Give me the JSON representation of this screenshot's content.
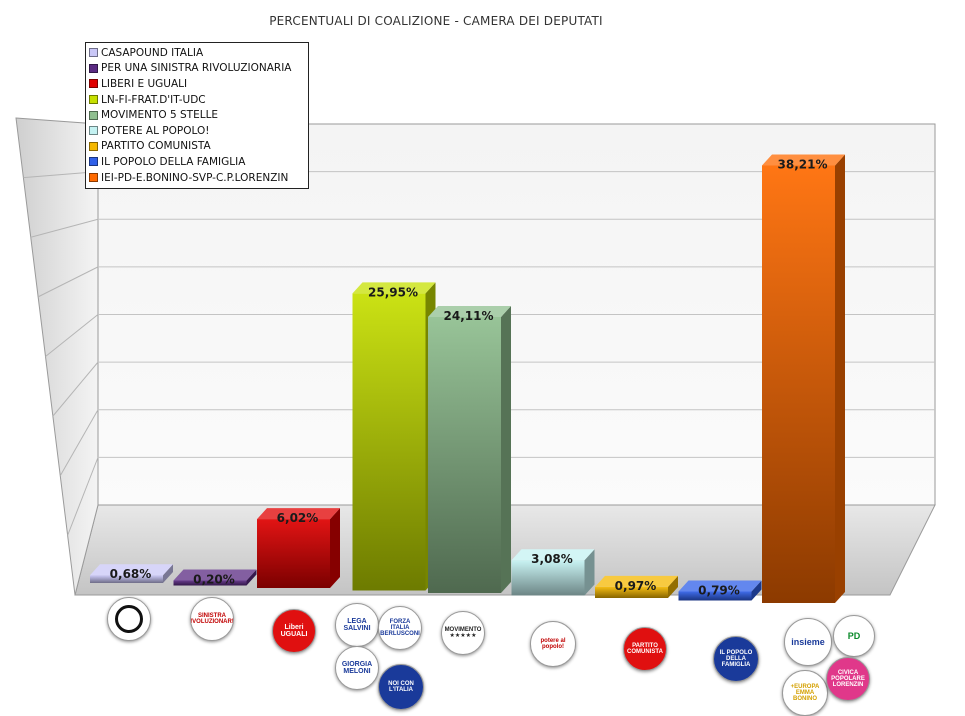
{
  "chart_data": {
    "type": "bar",
    "title": "PERCENTUALI DI COALIZIONE - CAMERA DEI DEPUTATI",
    "categories": [
      "CASAPOUND ITALIA",
      "PER UNA SINISTRA RIVOLUZIONARIA",
      "LIBERI E UGUALI",
      "LN-FI-FRAT.D'IT-UDC",
      "MOVIMENTO 5 STELLE",
      "POTERE AL POPOLO!",
      "PARTITO COMUNISTA",
      "IL POPOLO DELLA FAMIGLIA",
      "IEI-PD-E.BONINO-SVP-C.P.LORENZIN"
    ],
    "values": [
      0.68,
      0.2,
      6.02,
      25.95,
      24.11,
      3.08,
      0.97,
      0.79,
      38.21
    ],
    "data_labels": [
      "0,68%",
      "0,20%",
      "6,02%",
      "25,95%",
      "24,11%",
      "3,08%",
      "0,97%",
      "0,79%",
      "38,21%"
    ],
    "colors": [
      "#c9c7f7",
      "#5a2a82",
      "#e00000",
      "#c6e000",
      "#8fbf8f",
      "#c4f2f2",
      "#f5b800",
      "#2f5fe8",
      "#ff6a00"
    ],
    "ylim": [
      0,
      40
    ],
    "grid": true,
    "legend_position": "top-left"
  },
  "logos": [
    {
      "name": "casapound-logo",
      "text": "",
      "bg": "#ffffff",
      "fg": "#111111"
    },
    {
      "name": "sinistra-rivoluzionaria-logo",
      "text": "SINISTRA RIVOLUZIONARIA",
      "bg": "#ffffff",
      "fg": "#c00000"
    },
    {
      "name": "liberi-uguali-logo",
      "text": "Liberi UGUALI",
      "bg": "#e01010",
      "fg": "#ffffff"
    },
    {
      "name": "lega-salvini-logo",
      "text": "LEGA SALVINI",
      "bg": "#ffffff",
      "fg": "#1a3a9a"
    },
    {
      "name": "forza-italia-logo",
      "text": "FORZA ITALIA BERLUSCONI",
      "bg": "#ffffff",
      "fg": "#1a3a9a"
    },
    {
      "name": "fratelli-italia-logo",
      "text": "GIORGIA MELONI",
      "bg": "#ffffff",
      "fg": "#1a3a9a"
    },
    {
      "name": "noi-con-italia-logo",
      "text": "NOI CON L'ITALIA",
      "bg": "#1a3a9a",
      "fg": "#ffffff"
    },
    {
      "name": "movimento-5-stelle-logo",
      "text": "MOVIMENTO ★★★★★",
      "bg": "#ffffff",
      "fg": "#222222"
    },
    {
      "name": "potere-al-popolo-logo",
      "text": "potere al popolo!",
      "bg": "#ffffff",
      "fg": "#c00000"
    },
    {
      "name": "partito-comunista-logo",
      "text": "PARTITO COMUNISTA",
      "bg": "#e01010",
      "fg": "#ffffff"
    },
    {
      "name": "popolo-famiglia-logo",
      "text": "IL POPOLO DELLA FAMIGLIA",
      "bg": "#1a3a9a",
      "fg": "#ffffff"
    },
    {
      "name": "insieme-logo",
      "text": "insieme",
      "bg": "#ffffff",
      "fg": "#1a3a9a"
    },
    {
      "name": "pd-logo",
      "text": "PD",
      "bg": "#ffffff",
      "fg": "#0a8a2a"
    },
    {
      "name": "piu-europa-logo",
      "text": "+EUROPA EMMA BONINO",
      "bg": "#ffffff",
      "fg": "#d4a000"
    },
    {
      "name": "civica-popolare-logo",
      "text": "CIVICA POPOLARE LORENZIN",
      "bg": "#e0388a",
      "fg": "#ffffff"
    }
  ]
}
